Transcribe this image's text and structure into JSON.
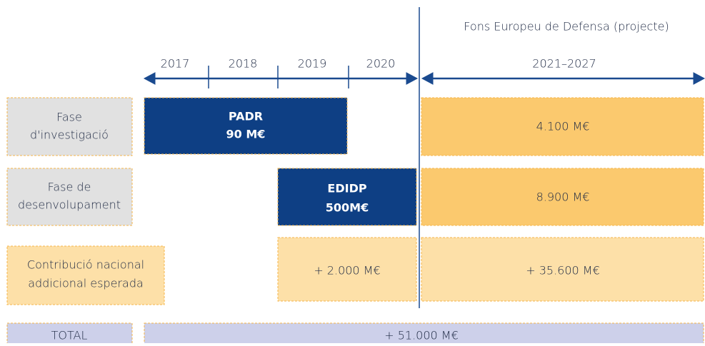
{
  "header": {
    "title": "Fons Europeu de Defensa (projecte)"
  },
  "timeline": {
    "years": [
      "2017",
      "2018",
      "2019",
      "2020"
    ],
    "future": "2021–2027"
  },
  "rows": [
    {
      "label": [
        "Fase",
        "d'investigació"
      ],
      "program": [
        "PADR",
        "90 M€"
      ],
      "future": "4.100 M€"
    },
    {
      "label": [
        "Fase de",
        "desenvolupament"
      ],
      "program": [
        "EDIDP",
        "500M€"
      ],
      "future": "8.900 M€"
    },
    {
      "label": [
        "Contribució nacional",
        "addicional esperada"
      ],
      "program": [
        "+ 2.000 M€"
      ],
      "future": "+ 35.600 M€"
    }
  ],
  "total": {
    "label": "TOTAL",
    "value": "+ 51.000 M€"
  }
}
